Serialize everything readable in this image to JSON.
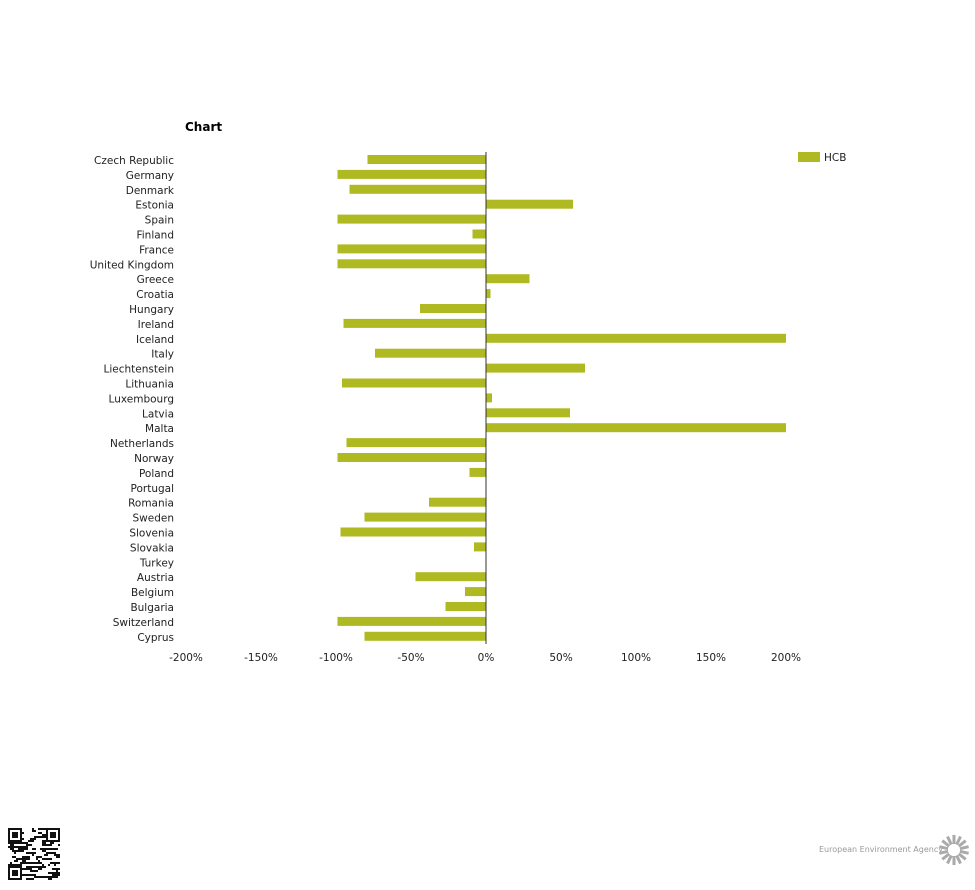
{
  "chart_data": {
    "type": "bar",
    "orientation": "horizontal",
    "title": "Chart",
    "categories": [
      "Czech Republic",
      "Germany",
      "Denmark",
      "Estonia",
      "Spain",
      "Finland",
      "France",
      "United Kingdom",
      "Greece",
      "Croatia",
      "Hungary",
      "Ireland",
      "Iceland",
      "Italy",
      "Liechtenstein",
      "Lithuania",
      "Luxembourg",
      "Latvia",
      "Malta",
      "Netherlands",
      "Norway",
      "Poland",
      "Portugal",
      "Romania",
      "Sweden",
      "Slovenia",
      "Slovakia",
      "Turkey",
      "Austria",
      "Belgium",
      "Bulgaria",
      "Switzerland",
      "Cyprus"
    ],
    "series": [
      {
        "name": "HCB",
        "color": "#afba22",
        "values": [
          -79,
          -99,
          -91,
          58,
          -99,
          -9,
          -99,
          -99,
          29,
          3,
          -44,
          -95,
          200,
          -74,
          66,
          -96,
          4,
          56,
          200,
          -93,
          -99,
          -11,
          0,
          -38,
          -81,
          -97,
          -8,
          0,
          -47,
          -14,
          -27,
          -99,
          -81
        ]
      }
    ],
    "xlim": [
      -200,
      200
    ],
    "xticks": [
      -200,
      -150,
      -100,
      -50,
      0,
      50,
      100,
      150,
      200
    ],
    "xtick_labels": [
      "-200%",
      "-150%",
      "-100%",
      "-50%",
      "0%",
      "50%",
      "100%",
      "150%",
      "200%"
    ],
    "legend": "top-right",
    "grid": false
  },
  "footer": {
    "brand": "European Environment Agency"
  }
}
